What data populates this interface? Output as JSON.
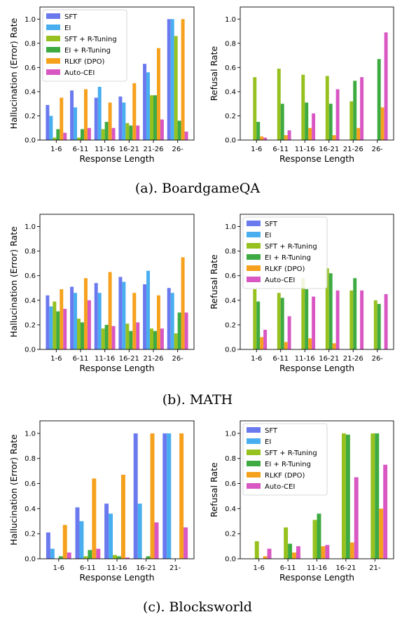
{
  "colors": [
    "#6b79ee",
    "#48aeef",
    "#96c11f",
    "#3eaa42",
    "#f6a11d",
    "#d957c3"
  ],
  "legend_labels": [
    "SFT",
    "EI",
    "SFT + R-Tuning",
    "EI + R-Tuning",
    "RLKF (DPO)",
    "Auto-CEI"
  ],
  "captions": [
    "(a). BoardgameQA",
    "(b). MATH",
    "(c). Blocksworld"
  ],
  "chart_data": [
    {
      "id": "boardgame-hallucination",
      "type": "bar",
      "ylabel": "Hallucination (Error) Rate",
      "xlabel": "Response Length",
      "categories": [
        "1-6",
        "6-11",
        "11-16",
        "16-21",
        "21-26",
        "26-"
      ],
      "ylim": [
        0,
        1.1
      ],
      "yticks": [
        "0.0",
        "0.2",
        "0.4",
        "0.6",
        "0.8",
        "1.0"
      ],
      "legend": "top-left",
      "series": [
        {
          "name": "SFT",
          "values": [
            0.29,
            0.41,
            0.35,
            0.36,
            0.63,
            1.0
          ]
        },
        {
          "name": "EI",
          "values": [
            0.2,
            0.27,
            0.44,
            0.31,
            0.56,
            1.0
          ]
        },
        {
          "name": "SFT + R-Tuning",
          "values": [
            0.02,
            0.02,
            0.09,
            0.14,
            0.37,
            0.86
          ]
        },
        {
          "name": "EI + R-Tuning",
          "values": [
            0.09,
            0.09,
            0.15,
            0.12,
            0.37,
            0.16
          ]
        },
        {
          "name": "RLKF (DPO)",
          "values": [
            0.35,
            0.42,
            0.31,
            0.47,
            0.76,
            1.0
          ]
        },
        {
          "name": "Auto-CEI",
          "values": [
            0.06,
            0.1,
            0.1,
            0.12,
            0.17,
            0.07
          ]
        }
      ]
    },
    {
      "id": "boardgame-refusal",
      "type": "bar",
      "ylabel": "Refusal Rate",
      "xlabel": "Response Length",
      "categories": [
        "1-6",
        "6-11",
        "11-16",
        "16-21",
        "21-26",
        "26-"
      ],
      "ylim": [
        0,
        1.1
      ],
      "yticks": [
        "0.0",
        "0.2",
        "0.4",
        "0.6",
        "0.8",
        "1.0"
      ],
      "legend": "none",
      "series": [
        {
          "name": "SFT",
          "values": [
            0.0,
            0.0,
            0.0,
            0.0,
            0.0,
            0.0
          ]
        },
        {
          "name": "EI",
          "values": [
            0.0,
            0.0,
            0.0,
            0.0,
            0.0,
            0.0
          ]
        },
        {
          "name": "SFT + R-Tuning",
          "values": [
            0.52,
            0.59,
            0.54,
            0.53,
            0.32,
            0.0
          ]
        },
        {
          "name": "EI + R-Tuning",
          "values": [
            0.15,
            0.3,
            0.31,
            0.3,
            0.49,
            0.67
          ]
        },
        {
          "name": "RLKF (DPO)",
          "values": [
            0.03,
            0.04,
            0.1,
            0.04,
            0.1,
            0.27
          ]
        },
        {
          "name": "Auto-CEI",
          "values": [
            0.02,
            0.08,
            0.22,
            0.42,
            0.52,
            0.89
          ]
        }
      ]
    },
    {
      "id": "math-hallucination",
      "type": "bar",
      "ylabel": "Hallucination (Error) Rate",
      "xlabel": "Response Length",
      "categories": [
        "1-6",
        "6-11",
        "11-16",
        "16-21",
        "21-26",
        "26-"
      ],
      "ylim": [
        0,
        1.1
      ],
      "yticks": [
        "0.0",
        "0.2",
        "0.4",
        "0.6",
        "0.8",
        "1.0"
      ],
      "legend": "none",
      "series": [
        {
          "name": "SFT",
          "values": [
            0.44,
            0.51,
            0.54,
            0.59,
            0.53,
            0.5
          ]
        },
        {
          "name": "EI",
          "values": [
            0.35,
            0.46,
            0.46,
            0.55,
            0.64,
            0.46
          ]
        },
        {
          "name": "SFT + R-Tuning",
          "values": [
            0.39,
            0.25,
            0.17,
            0.21,
            0.17,
            0.13
          ]
        },
        {
          "name": "EI + R-Tuning",
          "values": [
            0.31,
            0.22,
            0.2,
            0.15,
            0.15,
            0.3
          ]
        },
        {
          "name": "RLKF (DPO)",
          "values": [
            0.49,
            0.58,
            0.63,
            0.46,
            0.44,
            0.75
          ]
        },
        {
          "name": "Auto-CEI",
          "values": [
            0.33,
            0.4,
            0.19,
            0.22,
            0.17,
            0.3
          ]
        }
      ]
    },
    {
      "id": "math-refusal",
      "type": "bar",
      "ylabel": "Refusal Rate",
      "xlabel": "Response Length",
      "categories": [
        "1-6",
        "6-11",
        "11-16",
        "16-21",
        "21-26",
        "26-"
      ],
      "ylim": [
        0,
        1.1
      ],
      "yticks": [
        "0.0",
        "0.2",
        "0.4",
        "0.6",
        "0.8",
        "1.0"
      ],
      "legend": "top-left",
      "series": [
        {
          "name": "SFT",
          "values": [
            0.0,
            0.0,
            0.0,
            0.0,
            0.0,
            0.0
          ]
        },
        {
          "name": "EI",
          "values": [
            0.0,
            0.0,
            0.0,
            0.0,
            0.0,
            0.0
          ]
        },
        {
          "name": "SFT + R-Tuning",
          "values": [
            0.49,
            0.46,
            0.58,
            0.66,
            0.48,
            0.4
          ]
        },
        {
          "name": "EI + R-Tuning",
          "values": [
            0.39,
            0.42,
            0.49,
            0.62,
            0.58,
            0.37
          ]
        },
        {
          "name": "RLKF (DPO)",
          "values": [
            0.1,
            0.06,
            0.09,
            0.05,
            0.0,
            0.0
          ]
        },
        {
          "name": "Auto-CEI",
          "values": [
            0.16,
            0.27,
            0.43,
            0.48,
            0.48,
            0.45
          ]
        }
      ]
    },
    {
      "id": "blocksworld-hallucination",
      "type": "bar",
      "ylabel": "Hallucination (Error) Rate",
      "xlabel": "Response Length",
      "categories": [
        "1-6",
        "6-11",
        "11-16",
        "16-21",
        "21-"
      ],
      "ylim": [
        0,
        1.1
      ],
      "yticks": [
        "0.0",
        "0.2",
        "0.4",
        "0.6",
        "0.8",
        "1.0"
      ],
      "legend": "none",
      "series": [
        {
          "name": "SFT",
          "values": [
            0.21,
            0.41,
            0.44,
            1.0,
            1.0
          ]
        },
        {
          "name": "EI",
          "values": [
            0.08,
            0.3,
            0.36,
            0.44,
            1.0
          ]
        },
        {
          "name": "SFT + R-Tuning",
          "values": [
            0.0,
            0.02,
            0.03,
            0.0,
            0.0
          ]
        },
        {
          "name": "EI + R-Tuning",
          "values": [
            0.02,
            0.07,
            0.02,
            0.02,
            0.0
          ]
        },
        {
          "name": "RLKF (DPO)",
          "values": [
            0.27,
            0.64,
            0.67,
            1.0,
            1.0
          ]
        },
        {
          "name": "Auto-CEI",
          "values": [
            0.05,
            0.08,
            0.01,
            0.29,
            0.25
          ]
        }
      ]
    },
    {
      "id": "blocksworld-refusal",
      "type": "bar",
      "ylabel": "Refusal Rate",
      "xlabel": "Response Length",
      "categories": [
        "1-6",
        "6-11",
        "11-16",
        "16-21",
        "21-"
      ],
      "ylim": [
        0,
        1.1
      ],
      "yticks": [
        "0.0",
        "0.2",
        "0.4",
        "0.6",
        "0.8",
        "1.0"
      ],
      "legend": "top-left",
      "series": [
        {
          "name": "SFT",
          "values": [
            0.0,
            0.0,
            0.0,
            0.0,
            0.0
          ]
        },
        {
          "name": "EI",
          "values": [
            0.0,
            0.0,
            0.0,
            0.0,
            0.0
          ]
        },
        {
          "name": "SFT + R-Tuning",
          "values": [
            0.14,
            0.25,
            0.31,
            1.0,
            1.0
          ]
        },
        {
          "name": "EI + R-Tuning",
          "values": [
            0.0,
            0.12,
            0.36,
            0.99,
            1.0
          ]
        },
        {
          "name": "RLKF (DPO)",
          "values": [
            0.02,
            0.05,
            0.1,
            0.13,
            0.4
          ]
        },
        {
          "name": "Auto-CEI",
          "values": [
            0.08,
            0.1,
            0.11,
            0.65,
            0.75
          ]
        }
      ]
    }
  ]
}
